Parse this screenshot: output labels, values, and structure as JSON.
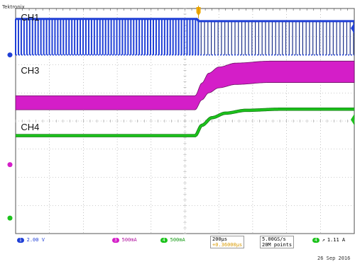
{
  "scope": {
    "brand": "Tektronix",
    "background": "#ffffff",
    "grid_color": "#9a9a9a",
    "grid": true
  },
  "chart_data": {
    "type": "line",
    "title": "",
    "xlabel": "",
    "ylabel": "",
    "xlim": [
      -5,
      5
    ],
    "ylim": [
      -4,
      4
    ],
    "grid": true,
    "divisions": {
      "x": 10,
      "y": 8
    },
    "trigger_x": 0.4,
    "series": [
      {
        "name": "CH1",
        "color": "#1f3fd6",
        "kind": "switching",
        "label_at": [
          -4.95,
          3.75
        ],
        "x": [
          -5,
          0.4,
          0.4,
          5
        ],
        "high": [
          3.63,
          3.63,
          3.55,
          3.55
        ],
        "low": [
          2.35,
          2.35,
          2.35,
          2.35
        ],
        "pulse_period_div": [
          0.083,
          0.083,
          0.1,
          0.1
        ],
        "marker": "1"
      },
      {
        "name": "CH3",
        "color": "#d41ec8",
        "kind": "band",
        "label_at": [
          -4.95,
          1.85
        ],
        "x": [
          -5,
          0.3,
          0.5,
          0.7,
          1.0,
          1.5,
          2.5,
          5
        ],
        "y": [
          0.65,
          0.65,
          1.05,
          1.35,
          1.55,
          1.68,
          1.75,
          1.75
        ],
        "half_width": [
          0.25,
          0.25,
          0.3,
          0.35,
          0.37,
          0.38,
          0.38,
          0.38
        ],
        "marker": "3"
      },
      {
        "name": "CH4",
        "color": "#1cc21c",
        "kind": "line",
        "label_at": [
          -4.95,
          -0.15
        ],
        "x": [
          -5,
          0.3,
          0.5,
          0.8,
          1.2,
          1.8,
          2.8,
          5
        ],
        "y": [
          -0.52,
          -0.52,
          -0.15,
          0.12,
          0.28,
          0.38,
          0.42,
          0.42
        ],
        "thickness": 0.06,
        "marker": "4"
      }
    ]
  },
  "status_bar": {
    "ch1_scale": "2.00 V",
    "ch3_scale": "500mA",
    "ch4_scale": "500mA",
    "timebase": "200µs",
    "trigger_pos": "+0.36000µs",
    "sample_rate": "5.00GS/s",
    "record_length": "20M points",
    "trigger_level": "1.11 A",
    "date": "26 Sep  2016"
  }
}
